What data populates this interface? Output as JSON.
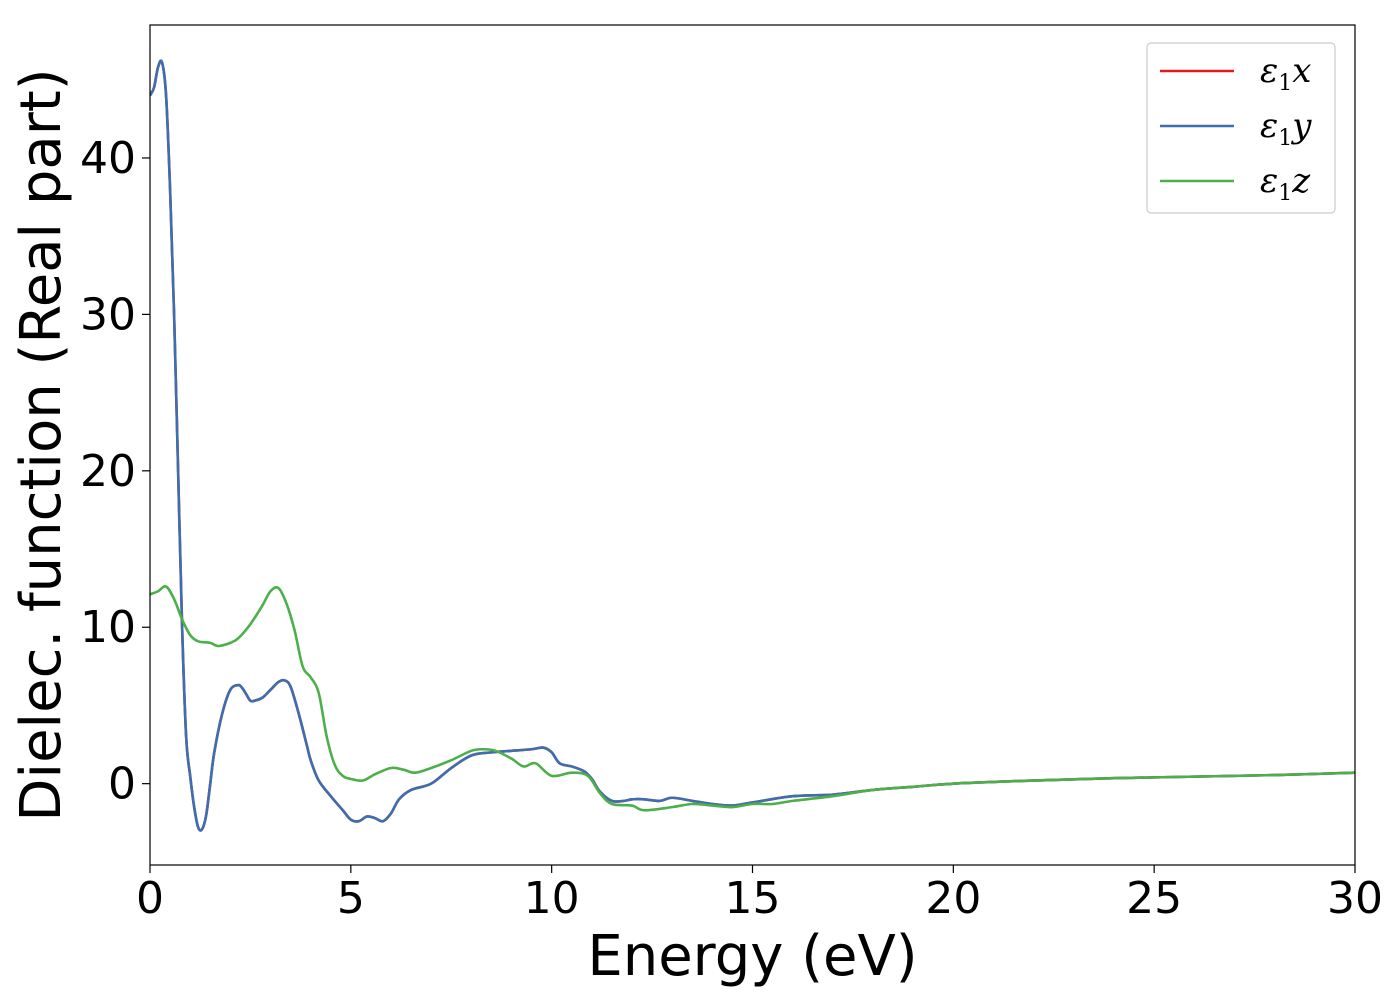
{
  "chart_data": {
    "type": "line",
    "title": "",
    "xlabel": "Energy (eV)",
    "ylabel": "Dielec. function (Real part)",
    "xlim": [
      0,
      30
    ],
    "ylim": [
      -5.2,
      48.5
    ],
    "xticks": [
      0,
      5,
      10,
      15,
      20,
      25,
      30
    ],
    "yticks": [
      0,
      10,
      20,
      30,
      40
    ],
    "grid": false,
    "legend_position": "top-right",
    "series": [
      {
        "name": "ε1x",
        "legend_main": "ε",
        "legend_sub": "1",
        "legend_var": "x",
        "color": "#e41a1c",
        "x": [
          0,
          0.1,
          0.2,
          0.3,
          0.4,
          0.5,
          0.6,
          0.7,
          0.8,
          0.9,
          1.0,
          1.1,
          1.2,
          1.3,
          1.4,
          1.5,
          1.6,
          1.8,
          2.0,
          2.2,
          2.3,
          2.4,
          2.5,
          2.6,
          2.8,
          3.0,
          3.2,
          3.35,
          3.5,
          3.7,
          3.9,
          4.0,
          4.2,
          4.5,
          4.8,
          5.0,
          5.2,
          5.4,
          5.6,
          5.8,
          6.0,
          6.2,
          6.5,
          7.0,
          7.5,
          8.0,
          8.5,
          9.0,
          9.5,
          9.8,
          10.0,
          10.2,
          10.5,
          10.8,
          11.0,
          11.2,
          11.5,
          11.8,
          12.0,
          12.3,
          12.7,
          13.0,
          13.5,
          14.0,
          14.5,
          15.0,
          16.0,
          17.0,
          18.0,
          19.0,
          20.0,
          22.0,
          24.0,
          26.0,
          28.0,
          30.0
        ],
        "values": [
          44.0,
          44.5,
          45.8,
          46.1,
          44.0,
          38.0,
          30.0,
          20.0,
          10.0,
          3.0,
          0.5,
          -1.5,
          -2.8,
          -2.9,
          -2.0,
          0.0,
          2.0,
          4.5,
          6.0,
          6.3,
          6.1,
          5.7,
          5.3,
          5.3,
          5.5,
          6.0,
          6.5,
          6.6,
          6.2,
          4.5,
          2.5,
          1.5,
          0.2,
          -0.8,
          -1.7,
          -2.3,
          -2.4,
          -2.1,
          -2.2,
          -2.4,
          -1.9,
          -1.0,
          -0.4,
          0.0,
          1.0,
          1.8,
          2.0,
          2.1,
          2.2,
          2.3,
          2.0,
          1.3,
          1.1,
          0.8,
          0.3,
          -0.5,
          -1.1,
          -1.1,
          -1.0,
          -1.0,
          -1.1,
          -0.9,
          -1.1,
          -1.3,
          -1.4,
          -1.2,
          -0.8,
          -0.7,
          -0.4,
          -0.2,
          0.0,
          0.2,
          0.35,
          0.45,
          0.55,
          0.7
        ]
      },
      {
        "name": "ε1y",
        "legend_main": "ε",
        "legend_sub": "1",
        "legend_var": "y",
        "color": "#3c6fb0",
        "x": [
          0,
          0.1,
          0.2,
          0.3,
          0.4,
          0.5,
          0.6,
          0.7,
          0.8,
          0.9,
          1.0,
          1.1,
          1.2,
          1.3,
          1.4,
          1.5,
          1.6,
          1.8,
          2.0,
          2.2,
          2.3,
          2.4,
          2.5,
          2.6,
          2.8,
          3.0,
          3.2,
          3.35,
          3.5,
          3.7,
          3.9,
          4.0,
          4.2,
          4.5,
          4.8,
          5.0,
          5.2,
          5.4,
          5.6,
          5.8,
          6.0,
          6.2,
          6.5,
          7.0,
          7.5,
          8.0,
          8.5,
          9.0,
          9.5,
          9.8,
          10.0,
          10.2,
          10.5,
          10.8,
          11.0,
          11.2,
          11.5,
          11.8,
          12.0,
          12.3,
          12.7,
          13.0,
          13.5,
          14.0,
          14.5,
          15.0,
          16.0,
          17.0,
          18.0,
          19.0,
          20.0,
          22.0,
          24.0,
          26.0,
          28.0,
          30.0
        ],
        "values": [
          44.0,
          44.5,
          45.8,
          46.1,
          44.0,
          38.0,
          30.0,
          20.0,
          10.0,
          3.0,
          0.5,
          -1.5,
          -2.8,
          -2.9,
          -2.0,
          0.0,
          2.0,
          4.5,
          6.0,
          6.3,
          6.1,
          5.7,
          5.3,
          5.3,
          5.5,
          6.0,
          6.5,
          6.6,
          6.2,
          4.5,
          2.5,
          1.5,
          0.2,
          -0.8,
          -1.7,
          -2.3,
          -2.4,
          -2.1,
          -2.2,
          -2.4,
          -1.9,
          -1.0,
          -0.4,
          0.0,
          1.0,
          1.8,
          2.0,
          2.1,
          2.2,
          2.3,
          2.0,
          1.3,
          1.1,
          0.8,
          0.3,
          -0.5,
          -1.1,
          -1.1,
          -1.0,
          -1.0,
          -1.1,
          -0.9,
          -1.1,
          -1.3,
          -1.4,
          -1.2,
          -0.8,
          -0.7,
          -0.4,
          -0.2,
          0.0,
          0.2,
          0.35,
          0.45,
          0.55,
          0.7
        ]
      },
      {
        "name": "ε1z",
        "legend_main": "ε",
        "legend_sub": "1",
        "legend_var": "z",
        "color": "#4daf4a",
        "x": [
          0,
          0.2,
          0.4,
          0.6,
          0.8,
          1.0,
          1.2,
          1.5,
          1.7,
          2.0,
          2.2,
          2.5,
          2.8,
          3.0,
          3.2,
          3.4,
          3.6,
          3.8,
          4.0,
          4.2,
          4.4,
          4.6,
          4.8,
          5.0,
          5.3,
          5.6,
          6.0,
          6.3,
          6.6,
          7.0,
          7.5,
          8.0,
          8.3,
          8.6,
          9.0,
          9.3,
          9.6,
          10.0,
          10.5,
          10.9,
          11.2,
          11.5,
          12.0,
          12.3,
          13.0,
          13.5,
          14.0,
          14.5,
          15.0,
          15.5,
          16.0,
          17.0,
          18.0,
          19.0,
          20.0,
          22.0,
          24.0,
          26.0,
          28.0,
          30.0
        ],
        "values": [
          12.1,
          12.3,
          12.6,
          11.8,
          10.5,
          9.5,
          9.1,
          9.0,
          8.8,
          9.0,
          9.3,
          10.2,
          11.4,
          12.3,
          12.5,
          11.5,
          9.8,
          7.5,
          6.8,
          5.8,
          3.0,
          1.2,
          0.5,
          0.3,
          0.2,
          0.6,
          1.0,
          0.9,
          0.7,
          1.0,
          1.5,
          2.1,
          2.2,
          2.1,
          1.6,
          1.1,
          1.3,
          0.5,
          0.7,
          0.5,
          -0.6,
          -1.3,
          -1.4,
          -1.7,
          -1.5,
          -1.3,
          -1.4,
          -1.5,
          -1.3,
          -1.3,
          -1.1,
          -0.8,
          -0.4,
          -0.2,
          0.0,
          0.2,
          0.35,
          0.45,
          0.55,
          0.7
        ]
      }
    ]
  }
}
